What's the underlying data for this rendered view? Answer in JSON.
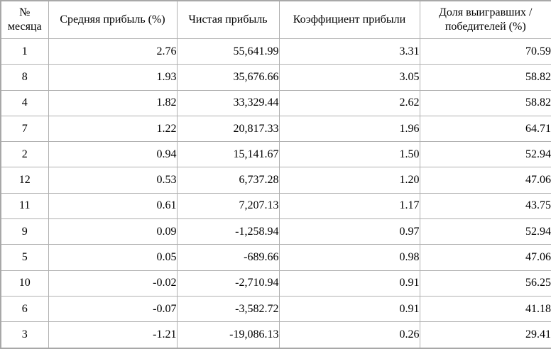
{
  "chart_data": {
    "type": "table",
    "title": "",
    "columns": [
      "№ месяца",
      "Средняя прибыль (%)",
      "Чистая прибыль",
      "Коэффициент прибыли",
      "Доля выигравших / победителей (%)"
    ],
    "column_keys": [
      "month-number",
      "avg-profit-pct",
      "net-profit",
      "profit-factor",
      "winners-share-pct"
    ],
    "rows": [
      [
        "1",
        "2.76",
        "55,641.99",
        "3.31",
        "70.59"
      ],
      [
        "8",
        "1.93",
        "35,676.66",
        "3.05",
        "58.82"
      ],
      [
        "4",
        "1.82",
        "33,329.44",
        "2.62",
        "58.82"
      ],
      [
        "7",
        "1.22",
        "20,817.33",
        "1.96",
        "64.71"
      ],
      [
        "2",
        "0.94",
        "15,141.67",
        "1.50",
        "52.94"
      ],
      [
        "12",
        "0.53",
        "6,737.28",
        "1.20",
        "47.06"
      ],
      [
        "11",
        "0.61",
        "7,207.13",
        "1.17",
        "43.75"
      ],
      [
        "9",
        "0.09",
        "-1,258.94",
        "0.97",
        "52.94"
      ],
      [
        "5",
        "0.05",
        "-689.66",
        "0.98",
        "47.06"
      ],
      [
        "10",
        "-0.02",
        "-2,710.94",
        "0.91",
        "56.25"
      ],
      [
        "6",
        "-0.07",
        "-3,582.72",
        "0.91",
        "41.18"
      ],
      [
        "3",
        "-1.21",
        "-19,086.13",
        "0.26",
        "29.41"
      ]
    ],
    "layout_hints": {
      "grid": true,
      "header_align": "center",
      "numeric_align": "right",
      "first_column_align": "center"
    }
  },
  "colors": {
    "background": "#ffffff",
    "text": "#000000",
    "grid_line": "#b0b0b0",
    "outer_border": "#a8a8a8"
  }
}
